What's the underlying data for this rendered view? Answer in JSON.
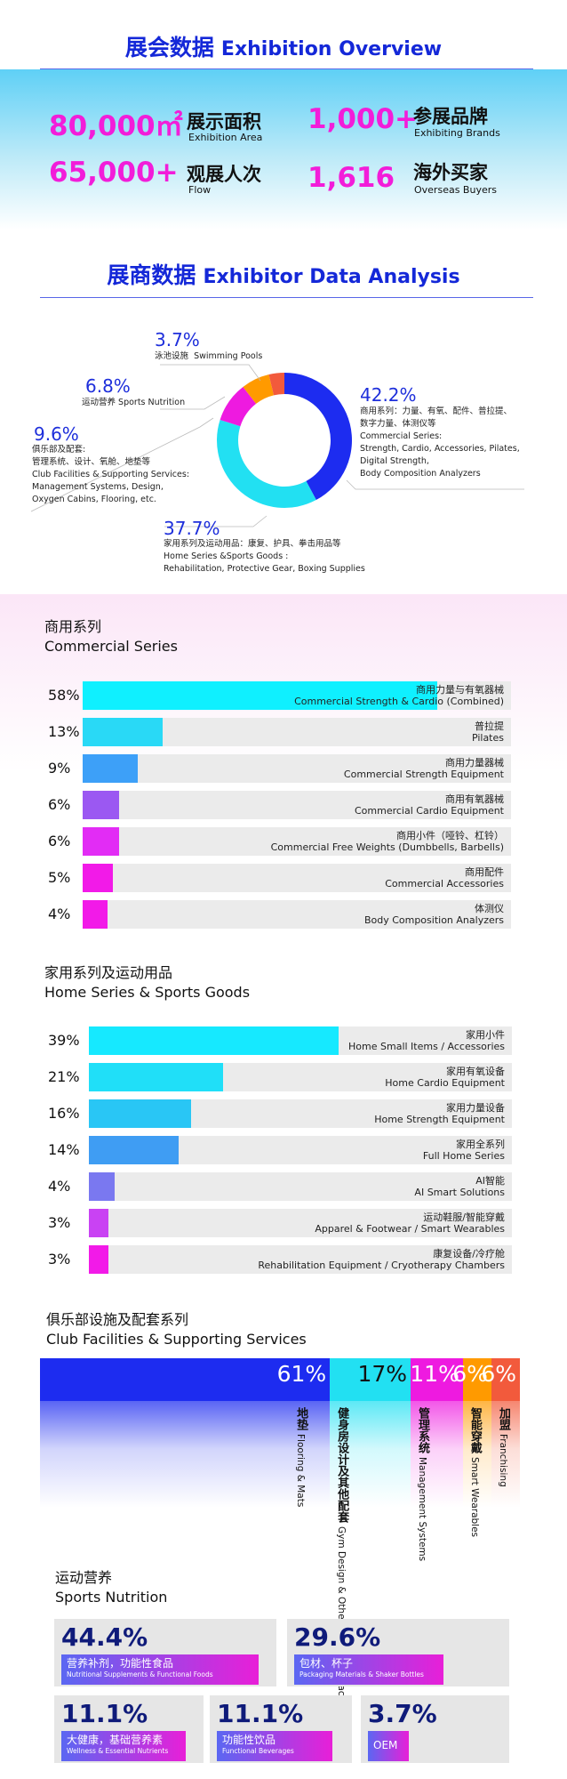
{
  "overview": {
    "title_cn": "展会数据",
    "title_en": "Exhibition Overview",
    "stats": [
      {
        "num": "80,000㎡",
        "cn": "展示面积",
        "en": "Exhibition Area"
      },
      {
        "num": "1,000+",
        "cn": "参展品牌",
        "en": "Exhibiting Brands"
      },
      {
        "num": "65,000+",
        "cn": "观展人次",
        "en": "Flow"
      },
      {
        "num": "1,616",
        "cn": "海外买家",
        "en": "Overseas Buyers"
      }
    ]
  },
  "exhibitor": {
    "title_cn": "展商数据",
    "title_en": "Exhibitor Data Analysis"
  },
  "colors": {
    "brand_blue": "#1428d8",
    "magenta": "#f21dd9",
    "cyan": "#22e0f2",
    "blue": "#1d2cf0",
    "orange": "#ff8c00",
    "red_orange": "#f2643c"
  },
  "chart_data": [
    {
      "type": "pie",
      "title": "展商数据 Exhibitor Data Analysis",
      "slices": [
        {
          "pct_label": "42.2%",
          "value": 42.2,
          "color": "#1d2cf0",
          "cn": "商用系列：力量、有氧、配件、普拉提、",
          "cn2": "数字力量、体测仪等",
          "en": "Commercial Series:",
          "en2": "Strength, Cardio, Accessories, Pilates,",
          "en3": "Digital Strength,",
          "en4": "Body Composition Analyzers"
        },
        {
          "pct_label": "37.7%",
          "value": 37.7,
          "color": "#22e0f2",
          "cn": "家用系列及运动用品：康复、护具、拳击用品等",
          "en": "Home Series &Sports Goods :",
          "en2": "Rehabilitation, Protective Gear, Boxing Supplies"
        },
        {
          "pct_label": "9.6%",
          "value": 9.6,
          "color": "#ee1ae0",
          "cn": "俱乐部及配套:",
          "cn2": "管理系统、设计、氧舱、地垫等",
          "en": "Club Facilities & Supporting Services:",
          "en2": "Management Systems, Design,",
          "en3": "Oxygen Cabins, Flooring, etc."
        },
        {
          "pct_label": "6.8%",
          "value": 6.8,
          "color": "#ff9a00",
          "cn": "运动营养",
          "en": "Sports Nutrition"
        },
        {
          "pct_label": "3.7%",
          "value": 3.7,
          "color": "#f25a3c",
          "cn": "泳池设施",
          "en": "Swimming Pools"
        }
      ]
    },
    {
      "type": "bar",
      "title_cn": "商用系列",
      "title_en": "Commercial Series",
      "rows": [
        {
          "pct": "58%",
          "value": 58,
          "cn": "商用力量与有氧器械",
          "en": "Commercial Strength & Cardio (Combined)"
        },
        {
          "pct": "13%",
          "value": 13,
          "cn": "普拉提",
          "en": "Pilates"
        },
        {
          "pct": "9%",
          "value": 9,
          "cn": "商用力量器械",
          "en": "Commercial Strength Equipment"
        },
        {
          "pct": "6%",
          "value": 6,
          "cn": "商用有氧器械",
          "en": "Commercial Cardio Equipment"
        },
        {
          "pct": "6%",
          "value": 6,
          "cn": "商用小件（哑铃、杠铃）",
          "en": "Commercial Free Weights (Dumbbells, Barbells)"
        },
        {
          "pct": "5%",
          "value": 5,
          "cn": "商用配件",
          "en": "Commercial Accessories"
        },
        {
          "pct": "4%",
          "value": 4,
          "cn": "体测仪",
          "en": "Body Composition Analyzers"
        }
      ]
    },
    {
      "type": "bar",
      "title_cn": "家用系列及运动用品",
      "title_en": "Home Series & Sports Goods",
      "rows": [
        {
          "pct": "39%",
          "value": 39,
          "cn": "家用小件",
          "en": "Home Small Items / Accessories"
        },
        {
          "pct": "21%",
          "value": 21,
          "cn": "家用有氧设备",
          "en": "Home Cardio Equipment"
        },
        {
          "pct": "16%",
          "value": 16,
          "cn": "家用力量设备",
          "en": "Home Strength Equipment"
        },
        {
          "pct": "14%",
          "value": 14,
          "cn": "家用全系列",
          "en": "Full Home Series"
        },
        {
          "pct": "4%",
          "value": 4,
          "cn": "AI智能",
          "en": "AI Smart Solutions"
        },
        {
          "pct": "3%",
          "value": 3,
          "cn": "运动鞋服/智能穿戴",
          "en": "Apparel & Footwear / Smart Wearables"
        },
        {
          "pct": "3%",
          "value": 3,
          "cn": "康复设备/冷疗舱",
          "en": "Rehabilitation Equipment / Cryotherapy Chambers"
        }
      ]
    },
    {
      "type": "bar",
      "title_cn": "俱乐部设施及配套系列",
      "title_en": "Club Facilities & Supporting Services",
      "segments": [
        {
          "pct": "61%",
          "value": 61,
          "color": "#1d2cf0",
          "cn": "地垫",
          "en": "Flooring & Mats"
        },
        {
          "pct": "17%",
          "value": 17,
          "color": "#22e0f2",
          "cn": "健身房设计及其他配套",
          "en": "Gym Design & Other Supporting Facilities"
        },
        {
          "pct": "11%",
          "value": 11,
          "color": "#ee1ae0",
          "cn": "管理系统",
          "en": "Management Systems"
        },
        {
          "pct": "6%",
          "value": 6,
          "color": "#ff9a00",
          "cn": "智能穿戴",
          "en": "Smart Wearables"
        },
        {
          "pct": "6%",
          "value": 6,
          "color": "#f25a3c",
          "cn": "加盟",
          "en": "Franchising"
        }
      ]
    },
    {
      "type": "table",
      "title_cn": "运动营养",
      "title_en": "Sports Nutrition",
      "items": [
        {
          "num": "44.4%",
          "value": 44.4,
          "cn": "营养补剂，功能性食品",
          "en": "Nutritional Supplements & Functional Foods"
        },
        {
          "num": "29.6%",
          "value": 29.6,
          "cn": "包材、杯子",
          "en": "Packaging Materials & Shaker Bottles"
        },
        {
          "num": "11.1%",
          "value": 11.1,
          "cn": "大健康，基础营养素",
          "en": "Wellness & Essential Nutrients"
        },
        {
          "num": "11.1%",
          "value": 11.1,
          "cn": "功能性饮品",
          "en": "Functional Beverages"
        },
        {
          "num": "3.7%",
          "value": 3.7,
          "cn": "OEM",
          "en": ""
        }
      ]
    }
  ]
}
